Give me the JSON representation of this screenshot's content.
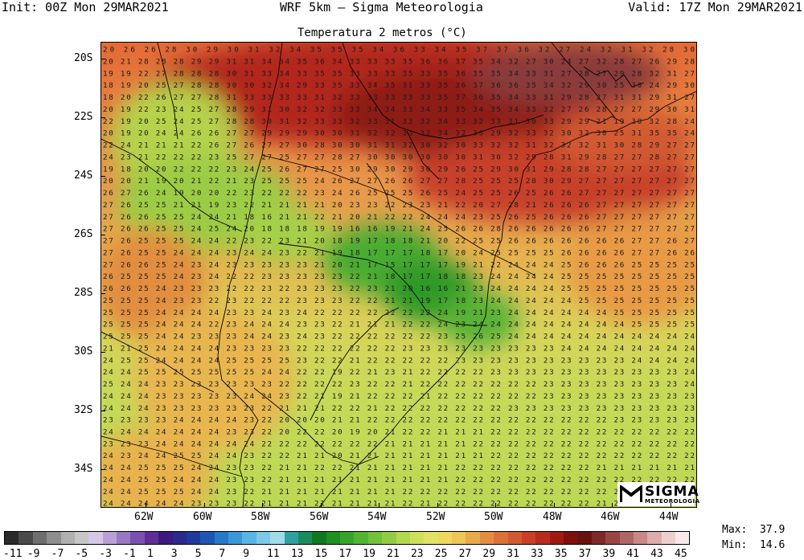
{
  "header": {
    "init": "Init: 00Z Mon 29MAR2021",
    "model": "WRF 5km – Sigma Meteorologia",
    "valid": "Valid: 17Z Mon 29MAR2021"
  },
  "map_title": "Temperatura 2 metros (°C)",
  "lat_labels": [
    "20S",
    "22S",
    "24S",
    "26S",
    "28S",
    "30S",
    "32S",
    "34S"
  ],
  "lon_labels": [
    "62W",
    "60W",
    "58W",
    "56W",
    "54W",
    "52W",
    "50W",
    "48W",
    "46W",
    "44W"
  ],
  "temperature_rows": [
    "20 26 26 28 30 29 30 31 32 34 35 35 35 34 36 33 34 35 37 37 36 32 27 24 32 31 32 28 30",
    "20 21 28 28 28 29 29 31 31 34 34 35 36 34 33 33 33 35 36 36 37 35 34 32 27 30 24 27 32 28 27 26 29 28",
    "19 19 22 27 28 28 28 30 31 33 34 33 35 35 33 33 33 35 33 35 36 35 35 34 33 31 27 28 27 29 28 32 31 27",
    "18 19 20 25 27 28 28 30 30 32 34 29 33 35 33 34 35 31 33 35 36 37 36 36 35 34 32 29 30 25 30 24 29 30",
    "18 20 22 26 27 27 28 31 33 33 33 33 31 32 33 33 33 33 33 35 37 36 35 34 33 31 29 28 27 31 31 29 31 27",
    "20 19 22 23 24 25 27 28 29 31 30 32 32 33 33 34 34 33 34 33 35 34 35 34 33 32 27 26 28 27 27 29 30 31",
    "22 19 20 25 24 25 27 28 28 30 31 32 33 33 32 33 31 33 32 34 33 32 33 31 30 33 29 29 21 19 30 32 28 24",
    "20 19 20 24 24 26 26 27 27 29 29 29 30 30 31 32 32 33 32 34 32 30 29 32 33 32 30 32 30 25 31 35 35 24",
    "22 24 21 21 21 22 26 27 26 27 27 30 28 30 30 31 31 32 30 32 30 33 32 32 31 32 32 32 31 30 28 29 27 27",
    "24 23 21 22 22 22 23 25 27 27 25 27 27 28 27 30 30 30 30 30 30 31 30 32 29 28 31 29 28 27 27 28 27 27",
    "19 18 20 20 22 22 22 23 24 25 26 27 27 25 30 29 30 29 30 29 26 25 29 30 31 29 28 28 27 27 27 27 27 27",
    "20 20 21 19 20 21 22 21 23 25 25 25 24 26 27 27 26 26 27 27 28 25 25 25 28 30 29 27 27 27 27 27 27 27",
    "26 27 26 24 19 20 20 22 23 22 22 22 23 24 26 25 25 25 26 25 24 25 25 26 25 26 26 27 27 27 27 27 27 27",
    "27 26 25 25 21 21 19 23 22 21 21 21 21 20 23 23 22 23 23 21 22 20 27 28 21 26 26 26 27 27 27 27 27 27",
    "27 26 26 25 25 24 24 21 18 16 21 21 22 21 20 21 22 22 24 24 24 23 25 26 25 26 26 26 27 27 27 27 27 27",
    "27 26 26 25 25 24 25 24 20 18 18 18 19 19 16 16 19 21 24 25 26 26 28 26 26 26 26 26 27 27 27 27 27 27",
    "27 26 25 25 25 24 24 22 23 22 23 21 20 18 19 17 18 18 21 20 22 25 25 26 26 26 26 26 26 26 27 27 26 27",
    "27 26 25 25 24 24 24 23 24 24 23 22 21 19 18 17 17 17 18 17 20 24 25 25 25 25 26 26 26 26 27 27 26 26",
    "27 26 26 25 24 23 24 23 23 23 23 23 21 20 21 17 15 17 17 17 19 21 22 24 24 24 25 26 26 26 25 25 25 25",
    "26 25 25 25 24 23 24 22 22 23 23 23 23 23 22 21 18 17 17 18 18 23 24 24 24 24 25 25 25 25 25 25 25 25",
    "26 26 25 24 23 23 23 22 22 23 22 23 23 23 22 23 21 20 16 16 21 23 24 24 24 24 25 25 25 25 25 25 25 25",
    "25 25 25 24 23 23 22 23 22 22 22 23 23 23 22 22 21 21 19 17 18 23 24 24 24 24 24 25 25 25 25 25 25 25",
    "25 25 25 24 24 24 24 23 23 24 23 24 22 22 22 22 22 22 22 24 19 21 23 24 24 24 24 24 24 25 25 25 25 25",
    "25 25 25 24 24 24 22 23 24 24 24 23 23 22 21 21 21 22 22 24 23 24 24 24 24 24 24 24 24 24 25 25 25 25",
    "25 25 25 24 24 23 23 23 24 24 23 24 23 22 22 22 22 22 22 23 25 26 25 24 24 24 24 24 24 24 24 24 24 24",
    "21 21 25 24 24 24 24 23 23 23 23 22 22 22 22 22 22 23 23 23 23 23 23 23 23 23 24 24 24 24 24 24 24 24",
    "24 25 25 24 24 24 24 25 25 25 25 23 22 22 21 22 22 22 22 22 23 23 23 23 23 23 23 23 23 23 24 24 24 24",
    "24 24 25 25 25 25 25 25 25 24 24 22 22 19 22 21 23 21 22 22 22 22 23 23 23 23 23 23 23 23 23 23 23 24",
    "25 24 24 23 23 23 23 23 23 23 22 22 22 22 23 22 22 21 22 22 22 22 22 22 22 23 23 23 23 23 23 23 23 24",
    "24 24 24 23 23 23 23 23 24 24 23 22 21 19 21 22 22 22 21 22 22 22 22 22 22 23 23 23 23 23 23 23 23 23",
    "24 24 24 23 23 23 23 23 23 22 21 21 21 22 22 21 22 22 22 22 22 22 22 23 23 23 23 23 23 23 23 23 23 23",
    "23 23 23 23 24 24 24 24 23 22 20 20 20 21 21 22 22 22 22 22 22 22 22 22 22 22 22 22 22 23 23 23 23 23",
    "24 24 24 24 24 24 24 23 23 22 20 22 22 20 19 20 21 22 22 21 21 21 22 22 22 22 22 22 22 22 22 22 22 22",
    "23 23 23 24 24 24 24 24 24 22 22 22 22 22 22 22 21 21 21 21 21 22 22 22 22 22 22 22 22 22 22 22 22 22",
    "24 23 24 24 25 25 24 24 23 22 22 21 21 20 21 21 21 21 21 21 21 21 22 22 22 22 22 22 22 22 22 22 22 22",
    "24 24 25 25 25 24 24 23 23 22 21 21 22 22 21 21 21 21 21 21 22 22 22 22 22 22 22 22 21 21 21 21 21 21",
    "24 24 25 25 24 24 24 23 23 22 21 21 21 21 21 21 21 21 21 21 22 22 22 22 22 22 22 22 22 22 22 22 22 22",
    "24 24 25 25 25 24 24 23 22 21 21 21 21 21 21 21 21 22 22 22 22 22 22 22 22 22 22 22 22 22 22 22 22 22",
    "24 24 24 24 24 23 23 23 22 21 21 21 21 21 21 21 21 22 21 22 22 22 22 22 22 22 22 22 21 21 20 20 20 20"
  ],
  "colorbar": {
    "labels": [
      "-11",
      "-9",
      "-7",
      "-5",
      "-3",
      "-1",
      "1",
      "3",
      "5",
      "7",
      "9",
      "11",
      "13",
      "15",
      "17",
      "19",
      "21",
      "23",
      "25",
      "27",
      "29",
      "31",
      "33",
      "35",
      "37",
      "39",
      "41",
      "43",
      "45"
    ],
    "colors": [
      "#2a2a2a",
      "#4a4a4a",
      "#6e6e6e",
      "#8e8e8e",
      "#b0b0b0",
      "#c6c6c6",
      "#d6c8e4",
      "#b9a0d8",
      "#9878c4",
      "#7a50b0",
      "#5e2e96",
      "#3c1a80",
      "#2a2a8a",
      "#1e3a9c",
      "#1e56b4",
      "#2878c8",
      "#3a98d8",
      "#58b4e2",
      "#7cc8e8",
      "#a0dce8",
      "#30a0a0",
      "#1c8c5c",
      "#10781e",
      "#1f901f",
      "#36a42a",
      "#52b432",
      "#72c23c",
      "#92cc44",
      "#b2d84c",
      "#cee05a",
      "#e2e266",
      "#eed860",
      "#eec656",
      "#e8aa4a",
      "#e28e40",
      "#da7238",
      "#d25a30",
      "#c84028",
      "#b82c1e",
      "#a01a14",
      "#80100c",
      "#6a1210",
      "#7e2a28",
      "#984644",
      "#b06664",
      "#c88886",
      "#dcacaa",
      "#ecd0ce",
      "#f6eaea"
    ]
  },
  "stats": {
    "max_label": "Max:",
    "max_value": "37.9",
    "min_label": "Min:",
    "min_value": "14.6"
  },
  "logo": {
    "name": "SIGMA",
    "sub": "METEOROLOGIA"
  },
  "colors": {
    "frame": "#000000",
    "coast": "#000000"
  }
}
